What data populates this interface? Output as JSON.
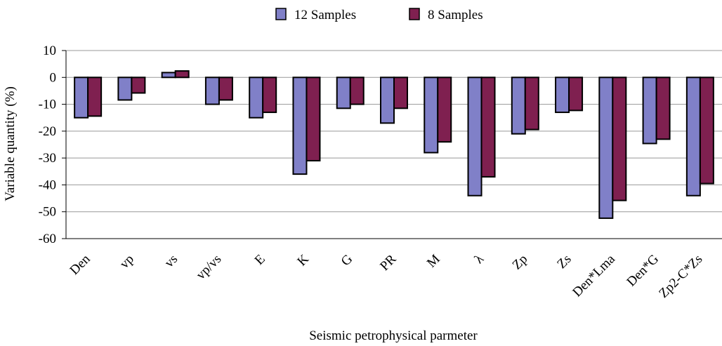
{
  "chart_data": {
    "type": "bar",
    "categories": [
      "Den",
      "vp",
      "vs",
      "vp/vs",
      "E",
      "K",
      "G",
      "PR",
      "M",
      "λ",
      "Zp",
      "Zs",
      "Den*Lma",
      "Den*G",
      "Zp2-C*Zs"
    ],
    "series": [
      {
        "name": "12 Samples",
        "color": "#8080c8",
        "values": [
          -15,
          -8.4,
          1.8,
          -10,
          -15,
          -36,
          -11.5,
          -17,
          -28,
          -44,
          -21,
          -13,
          -52.4,
          -24.6,
          -44
        ]
      },
      {
        "name": "8 Samples",
        "color": "#7f2050",
        "values": [
          -14.4,
          -5.8,
          2.4,
          -8.4,
          -13,
          -31,
          -10,
          -11.5,
          -24,
          -37,
          -19.4,
          -12.3,
          -45.8,
          -23,
          -39.5
        ]
      }
    ],
    "ylim": [
      -60,
      10
    ],
    "yticks": [
      10,
      0,
      -10,
      -20,
      -30,
      -40,
      -50,
      -60
    ],
    "y_label": "Variable quantity (%)",
    "x_label": "Seismic petrophysical parmeter",
    "grid": true,
    "legend": "top"
  }
}
